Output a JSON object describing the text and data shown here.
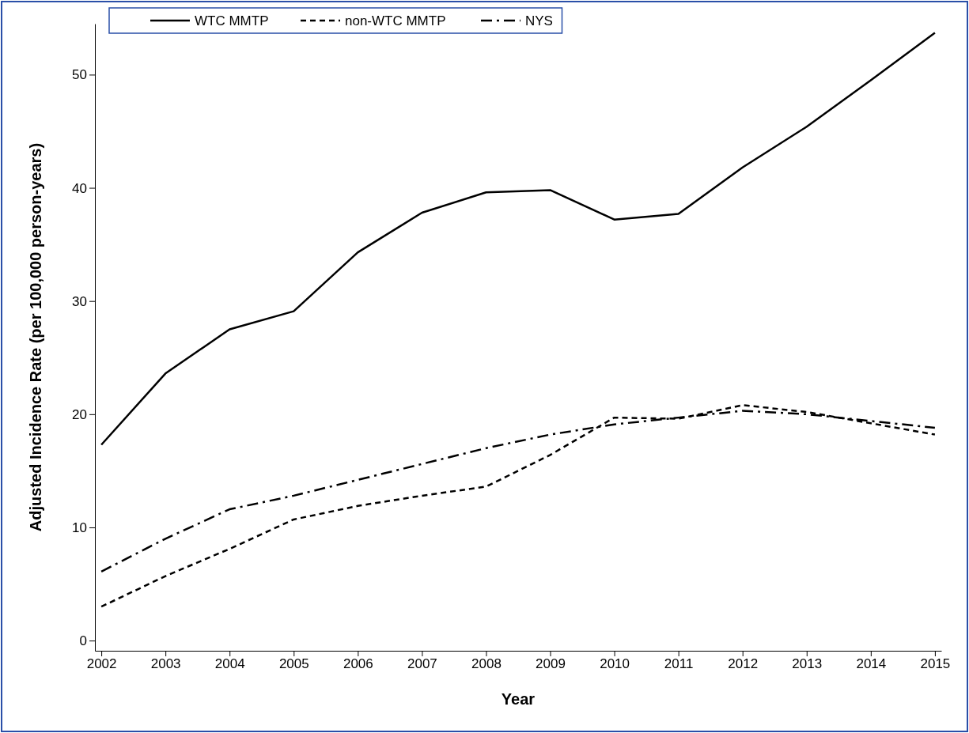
{
  "chart_data": {
    "type": "line",
    "xlabel": "Year",
    "ylabel": "Adjusted Incidence Rate (per 100,000 person-years)",
    "x": [
      2002,
      2003,
      2004,
      2005,
      2006,
      2007,
      2008,
      2009,
      2010,
      2011,
      2012,
      2013,
      2014,
      2015
    ],
    "xlim": [
      2001.9,
      2015.1
    ],
    "xticks": [
      2002,
      2003,
      2004,
      2005,
      2006,
      2007,
      2008,
      2009,
      2010,
      2011,
      2012,
      2013,
      2014,
      2015
    ],
    "ylim": [
      -0.9,
      54.5
    ],
    "yticks": [
      0,
      10,
      20,
      30,
      40,
      50
    ],
    "series": [
      {
        "name": "WTC MMTP",
        "color": "#000000",
        "line_style": "solid",
        "values": [
          17.3,
          23.6,
          27.5,
          29.1,
          34.3,
          37.8,
          39.6,
          39.8,
          37.2,
          37.7,
          41.8,
          45.4,
          49.5,
          53.7
        ]
      },
      {
        "name": "non-WTC MMTP",
        "color": "#000000",
        "line_style": "dashed",
        "values": [
          3.0,
          5.7,
          8.1,
          10.7,
          11.9,
          12.8,
          13.6,
          16.4,
          19.7,
          19.6,
          20.8,
          20.2,
          19.2,
          18.2
        ]
      },
      {
        "name": "NYS",
        "color": "#000000",
        "line_style": "dashdot",
        "values": [
          6.1,
          9.0,
          11.6,
          12.8,
          14.2,
          15.6,
          17.0,
          18.2,
          19.1,
          19.7,
          20.3,
          20.0,
          19.4,
          18.8
        ]
      }
    ],
    "legend": "top left",
    "grid": false,
    "marker": "none"
  }
}
